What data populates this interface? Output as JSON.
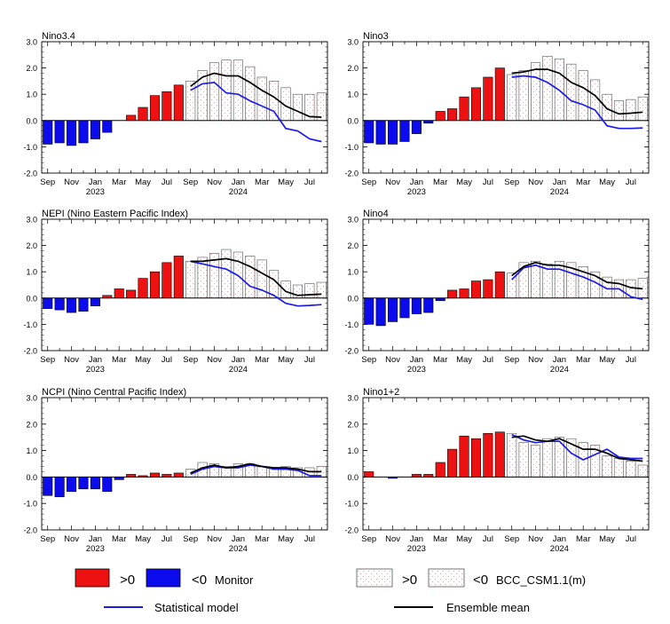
{
  "colors": {
    "monitor_pos": "#ee1111",
    "monitor_neg": "#0b0bee",
    "stat_line": "#1a1aee",
    "ens_line": "#000000",
    "forecast_fill": "#ffffff",
    "stipple": "#c99"
  },
  "x_ticks": [
    "Sep",
    "Nov",
    "Jan",
    "Mar",
    "May",
    "Jul",
    "Sep",
    "Nov",
    "Jan",
    "Mar",
    "May",
    "Jul"
  ],
  "year_labels": [
    "2023",
    "2024"
  ],
  "y_ticks": [
    "3.0",
    "2.0",
    "1.0",
    "0.0",
    "-1.0",
    "-2.0"
  ],
  "legend": {
    "pos_label": ">0",
    "neg_label": "<0",
    "monitor_label": "Monitor",
    "model_label": "BCC_CSM1.1(m)",
    "stat_label": "Statistical model",
    "ens_label": "Ensemble mean"
  },
  "chart_data": [
    {
      "type": "bar",
      "title": "Nino3.4",
      "ylim": [
        -2,
        3
      ],
      "monitor": [
        -0.9,
        -0.85,
        -0.95,
        -0.85,
        -0.7,
        -0.45,
        0,
        0.2,
        0.5,
        0.95,
        1.1,
        1.35
      ],
      "forecast": [
        1.5,
        1.9,
        2.2,
        2.3,
        2.3,
        2.05,
        1.65,
        1.5,
        1.25,
        1.0,
        1.0,
        1.05
      ],
      "statistical": [
        1.15,
        1.4,
        1.45,
        1.05,
        1.0,
        0.75,
        0.55,
        0.35,
        -0.3,
        -0.4,
        -0.7,
        -0.8
      ],
      "ensemble": [
        1.3,
        1.65,
        1.8,
        1.7,
        1.7,
        1.45,
        1.15,
        0.9,
        0.55,
        0.35,
        0.15,
        0.13
      ]
    },
    {
      "type": "bar",
      "title": "Nino3",
      "ylim": [
        -2,
        3
      ],
      "monitor": [
        -0.85,
        -0.9,
        -0.9,
        -0.8,
        -0.5,
        -0.1,
        0.35,
        0.45,
        0.9,
        1.25,
        1.65,
        2.0
      ],
      "forecast": [
        1.75,
        1.9,
        2.2,
        2.45,
        2.35,
        2.15,
        1.9,
        1.55,
        1.0,
        0.75,
        0.8,
        0.9
      ],
      "statistical": [
        1.65,
        1.7,
        1.65,
        1.45,
        1.15,
        0.75,
        0.6,
        0.4,
        -0.2,
        -0.3,
        -0.3,
        -0.28
      ],
      "ensemble": [
        1.8,
        1.85,
        1.95,
        1.95,
        1.8,
        1.45,
        1.25,
        0.95,
        0.45,
        0.25,
        0.28,
        0.32
      ]
    },
    {
      "type": "bar",
      "title": "NEPI (Nino Eastern Pacific Index)",
      "ylim": [
        -2,
        3
      ],
      "monitor": [
        -0.4,
        -0.45,
        -0.55,
        -0.5,
        -0.3,
        0.1,
        0.35,
        0.3,
        0.75,
        1.0,
        1.35,
        1.6
      ],
      "forecast": [
        1.4,
        1.55,
        1.7,
        1.85,
        1.75,
        1.6,
        1.45,
        1.05,
        0.65,
        0.5,
        0.55,
        0.6
      ],
      "statistical": [
        1.4,
        1.3,
        1.2,
        1.1,
        0.85,
        0.45,
        0.3,
        0.1,
        -0.2,
        -0.3,
        -0.28,
        -0.25
      ],
      "ensemble": [
        1.4,
        1.4,
        1.45,
        1.5,
        1.4,
        1.2,
        0.95,
        0.7,
        0.25,
        0.1,
        0.13,
        0.15
      ]
    },
    {
      "type": "bar",
      "title": "Nino4",
      "ylim": [
        -2,
        3
      ],
      "monitor": [
        -1.0,
        -1.05,
        -0.9,
        -0.75,
        -0.6,
        -0.55,
        -0.1,
        0.3,
        0.35,
        0.65,
        0.7,
        1.0
      ],
      "forecast": [
        0.95,
        1.35,
        1.4,
        1.3,
        1.4,
        1.35,
        1.2,
        1.0,
        0.8,
        0.7,
        0.7,
        0.75
      ],
      "statistical": [
        0.7,
        1.15,
        1.25,
        1.1,
        1.1,
        0.95,
        0.8,
        0.6,
        0.35,
        0.35,
        0.05,
        -0.05
      ],
      "ensemble": [
        0.85,
        1.2,
        1.35,
        1.25,
        1.25,
        1.15,
        1.0,
        0.85,
        0.6,
        0.55,
        0.4,
        0.35
      ]
    },
    {
      "type": "bar",
      "title": "NCPI (Nino Central Pacific Index)",
      "ylim": [
        -2,
        3
      ],
      "monitor": [
        -0.7,
        -0.75,
        -0.55,
        -0.45,
        -0.45,
        -0.55,
        -0.1,
        0.1,
        0.05,
        0.15,
        0.1,
        0.15
      ],
      "forecast": [
        0.3,
        0.55,
        0.5,
        0.4,
        0.5,
        0.5,
        0.4,
        0.35,
        0.4,
        0.35,
        0.35,
        0.4
      ],
      "statistical": [
        0.1,
        0.3,
        0.4,
        0.35,
        0.35,
        0.45,
        0.4,
        0.3,
        0.3,
        0.25,
        0.05,
        0.05
      ],
      "ensemble": [
        0.15,
        0.35,
        0.45,
        0.35,
        0.4,
        0.5,
        0.4,
        0.35,
        0.35,
        0.3,
        0.2,
        0.2
      ]
    },
    {
      "type": "bar",
      "title": "Nino1+2",
      "ylim": [
        -2,
        3
      ],
      "monitor": [
        0.2,
        0,
        -0.05,
        0,
        0.1,
        0.1,
        0.55,
        1.05,
        1.55,
        1.45,
        1.65,
        1.7
      ],
      "forecast": [
        1.65,
        1.3,
        1.2,
        1.45,
        1.5,
        1.45,
        1.3,
        1.2,
        0.8,
        0.7,
        0.6,
        0.45
      ],
      "statistical": [
        1.6,
        1.4,
        1.3,
        1.35,
        1.35,
        0.9,
        0.65,
        0.85,
        1.05,
        0.75,
        0.7,
        0.7
      ],
      "ensemble": [
        1.5,
        1.55,
        1.4,
        1.35,
        1.45,
        1.25,
        1.05,
        1.05,
        0.9,
        0.7,
        0.65,
        0.6
      ]
    }
  ]
}
